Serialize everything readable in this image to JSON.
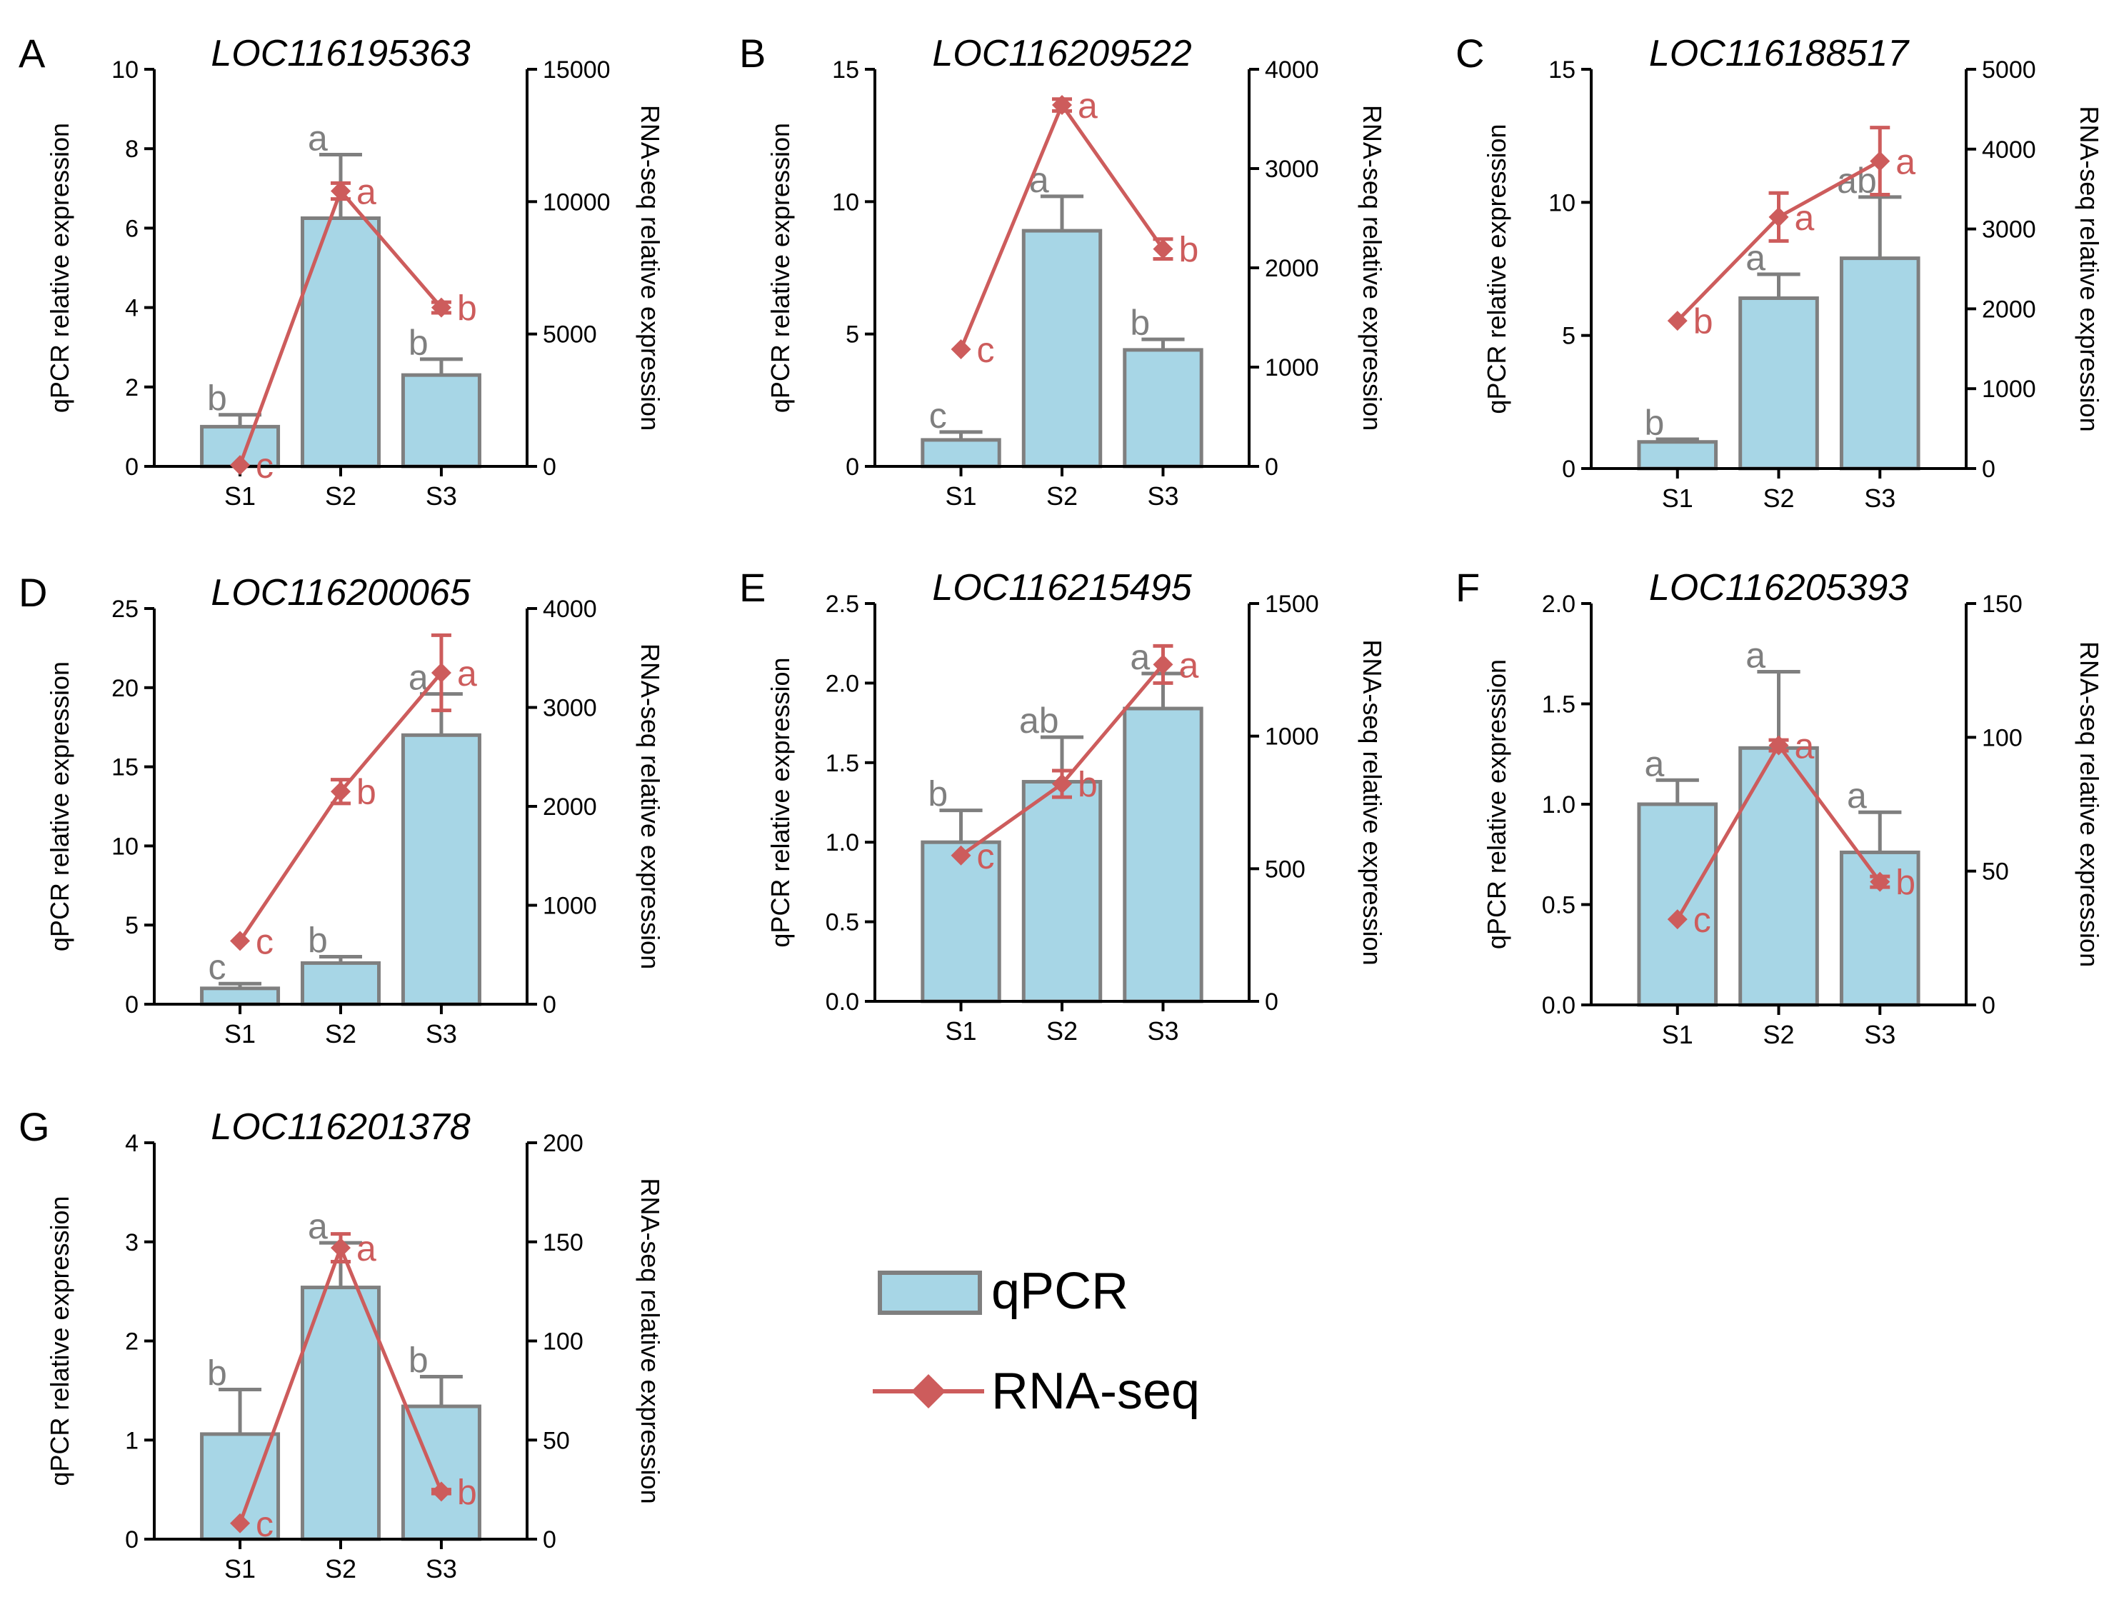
{
  "figure": {
    "legend": {
      "bar_label": "qPCR",
      "line_label": "RNA-seq"
    },
    "colors": {
      "bar_fill": "#A7D6E6",
      "bar_stroke": "#7F7F7F",
      "bar_letters": "#7F7F7F",
      "line": "#CD5C5C",
      "axis": "#000000"
    }
  },
  "chart_data": [
    {
      "panel": "A",
      "title": "LOC116195363",
      "type": "bar+line",
      "categories": [
        "S1",
        "S2",
        "S3"
      ],
      "ylabel": "qPCR relative expression",
      "y2label": "RNA-seq relative expression",
      "ylim": [
        0,
        10
      ],
      "yticks": [
        "0",
        "2",
        "4",
        "6",
        "8",
        "10"
      ],
      "y2lim": [
        0,
        15000
      ],
      "y2ticks": [
        "0",
        "5000",
        "10000",
        "15000"
      ],
      "qpcr": {
        "values": [
          1.0,
          6.25,
          2.3
        ],
        "errors": [
          0.3,
          1.6,
          0.4
        ],
        "letters": [
          "b",
          "a",
          "b"
        ]
      },
      "rnaseq": {
        "values": [
          50,
          10400,
          6000
        ],
        "errors": [
          0,
          300,
          200
        ],
        "letters": [
          "c",
          "a",
          "b"
        ]
      }
    },
    {
      "panel": "B",
      "title": "LOC116209522",
      "type": "bar+line",
      "categories": [
        "S1",
        "S2",
        "S3"
      ],
      "ylabel": "qPCR relative expression",
      "y2label": "RNA-seq relative expression",
      "ylim": [
        0,
        15
      ],
      "yticks": [
        "0",
        "5",
        "10",
        "15"
      ],
      "y2lim": [
        0,
        4000
      ],
      "y2ticks": [
        "0",
        "1000",
        "2000",
        "3000",
        "4000"
      ],
      "qpcr": {
        "values": [
          1.0,
          8.9,
          4.4
        ],
        "errors": [
          0.3,
          1.3,
          0.4
        ],
        "letters": [
          "c",
          "a",
          "b"
        ]
      },
      "rnaseq": {
        "values": [
          1180,
          3640,
          2190
        ],
        "errors": [
          0,
          60,
          100
        ],
        "letters": [
          "c",
          "a",
          "b"
        ]
      }
    },
    {
      "panel": "C",
      "title": "LOC116188517",
      "type": "bar+line",
      "categories": [
        "S1",
        "S2",
        "S3"
      ],
      "ylabel": "qPCR relative expression",
      "y2label": "RNA-seq relative expression",
      "ylim": [
        0,
        15
      ],
      "yticks": [
        "0",
        "5",
        "10",
        "15"
      ],
      "y2lim": [
        0,
        5000
      ],
      "y2ticks": [
        "0",
        "1000",
        "2000",
        "3000",
        "4000",
        "5000"
      ],
      "qpcr": {
        "values": [
          1.0,
          6.4,
          7.9
        ],
        "errors": [
          0.1,
          0.9,
          2.3
        ],
        "letters": [
          "b",
          "a",
          "ab"
        ]
      },
      "rnaseq": {
        "values": [
          1850,
          3150,
          3850
        ],
        "errors": [
          0,
          300,
          420
        ],
        "letters": [
          "b",
          "a",
          "a"
        ]
      }
    },
    {
      "panel": "D",
      "title": "LOC116200065",
      "type": "bar+line",
      "categories": [
        "S1",
        "S2",
        "S3"
      ],
      "ylabel": "qPCR relative expression",
      "y2label": "RNA-seq relative expression",
      "ylim": [
        0,
        25
      ],
      "yticks": [
        "0",
        "5",
        "10",
        "15",
        "20",
        "25"
      ],
      "y2lim": [
        0,
        4000
      ],
      "y2ticks": [
        "0",
        "1000",
        "2000",
        "3000",
        "4000"
      ],
      "qpcr": {
        "values": [
          1.0,
          2.6,
          17.0
        ],
        "errors": [
          0.3,
          0.4,
          2.6
        ],
        "letters": [
          "c",
          "b",
          "a"
        ]
      },
      "rnaseq": {
        "values": [
          640,
          2150,
          3350
        ],
        "errors": [
          0,
          120,
          380
        ],
        "letters": [
          "c",
          "b",
          "a"
        ]
      }
    },
    {
      "panel": "E",
      "title": "LOC116215495",
      "type": "bar+line",
      "categories": [
        "S1",
        "S2",
        "S3"
      ],
      "ylabel": "qPCR relative expression",
      "y2label": "RNA-seq relative expression",
      "ylim": [
        0,
        2.5
      ],
      "yticks": [
        "0.0",
        "0.5",
        "1.0",
        "1.5",
        "2.0",
        "2.5"
      ],
      "y2lim": [
        0,
        1500
      ],
      "y2ticks": [
        "0",
        "500",
        "1000",
        "1500"
      ],
      "qpcr": {
        "values": [
          1.0,
          1.38,
          1.84
        ],
        "errors": [
          0.2,
          0.28,
          0.22
        ],
        "letters": [
          "b",
          "ab",
          "a"
        ]
      },
      "rnaseq": {
        "values": [
          550,
          820,
          1270
        ],
        "errors": [
          0,
          50,
          70
        ],
        "letters": [
          "c",
          "b",
          "a"
        ]
      }
    },
    {
      "panel": "F",
      "title": "LOC116205393",
      "type": "bar+line",
      "categories": [
        "S1",
        "S2",
        "S3"
      ],
      "ylabel": "qPCR relative expression",
      "y2label": "RNA-seq relative expression",
      "ylim": [
        0,
        2.0
      ],
      "yticks": [
        "0.0",
        "0.5",
        "1.0",
        "1.5",
        "2.0"
      ],
      "y2lim": [
        0,
        150
      ],
      "y2ticks": [
        "0",
        "50",
        "100",
        "150"
      ],
      "qpcr": {
        "values": [
          1.0,
          1.28,
          0.76
        ],
        "errors": [
          0.12,
          0.38,
          0.2
        ],
        "letters": [
          "a",
          "a",
          "a"
        ]
      },
      "rnaseq": {
        "values": [
          32,
          97,
          46
        ],
        "errors": [
          0,
          2,
          2
        ],
        "letters": [
          "c",
          "a",
          "b"
        ]
      }
    },
    {
      "panel": "G",
      "title": "LOC116201378",
      "type": "bar+line",
      "categories": [
        "S1",
        "S2",
        "S3"
      ],
      "ylabel": "qPCR relative expression",
      "y2label": "RNA-seq relative expression",
      "ylim": [
        0,
        4
      ],
      "yticks": [
        "0",
        "1",
        "2",
        "3",
        "4"
      ],
      "y2lim": [
        0,
        200
      ],
      "y2ticks": [
        "0",
        "50",
        "100",
        "150",
        "200"
      ],
      "qpcr": {
        "values": [
          1.06,
          2.54,
          1.34
        ],
        "errors": [
          0.45,
          0.45,
          0.3
        ],
        "letters": [
          "b",
          "a",
          "b"
        ]
      },
      "rnaseq": {
        "values": [
          8,
          147,
          24
        ],
        "errors": [
          0,
          7,
          1
        ],
        "letters": [
          "c",
          "a",
          "b"
        ]
      }
    }
  ]
}
